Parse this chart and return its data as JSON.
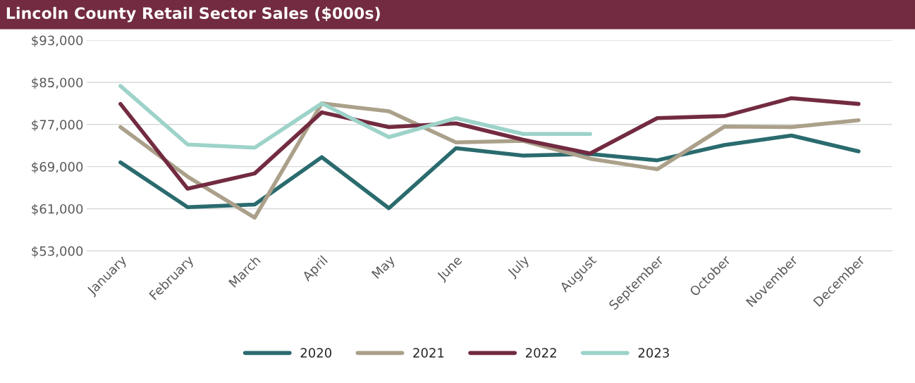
{
  "chart_data": {
    "type": "line",
    "title": "Lincoln County Retail Sector Sales ($000s)",
    "categories": [
      "January",
      "February",
      "March",
      "April",
      "May",
      "June",
      "July",
      "August",
      "September",
      "October",
      "November",
      "December"
    ],
    "series": [
      {
        "name": "2020",
        "color": "#2a6b6e",
        "values": [
          69800,
          61300,
          61800,
          70800,
          61100,
          72500,
          71100,
          71400,
          70200,
          73100,
          74900,
          71900
        ]
      },
      {
        "name": "2021",
        "color": "#aba08a",
        "values": [
          76500,
          67100,
          59300,
          81000,
          79500,
          73600,
          73900,
          70500,
          68500,
          76600,
          76500,
          77800
        ]
      },
      {
        "name": "2022",
        "color": "#722b40",
        "values": [
          80900,
          64800,
          67700,
          79300,
          76500,
          77200,
          74100,
          71500,
          78200,
          78600,
          82000,
          80900
        ]
      },
      {
        "name": "2023",
        "color": "#9dd3c9",
        "values": [
          84300,
          73200,
          72600,
          81000,
          74600,
          78200,
          75200,
          75200,
          null,
          null,
          null,
          null
        ]
      }
    ],
    "ylim": [
      53000,
      93000
    ],
    "yticks": [
      {
        "value": 53000,
        "label": "$53,000"
      },
      {
        "value": 61000,
        "label": "$61,000"
      },
      {
        "value": 69000,
        "label": "$69,000"
      },
      {
        "value": 77000,
        "label": "$77,000"
      },
      {
        "value": 85000,
        "label": "$85,000"
      },
      {
        "value": 93000,
        "label": "$93,000"
      }
    ],
    "grid": "y",
    "legend": "bottom",
    "marker": "none",
    "line_style": "solid"
  }
}
